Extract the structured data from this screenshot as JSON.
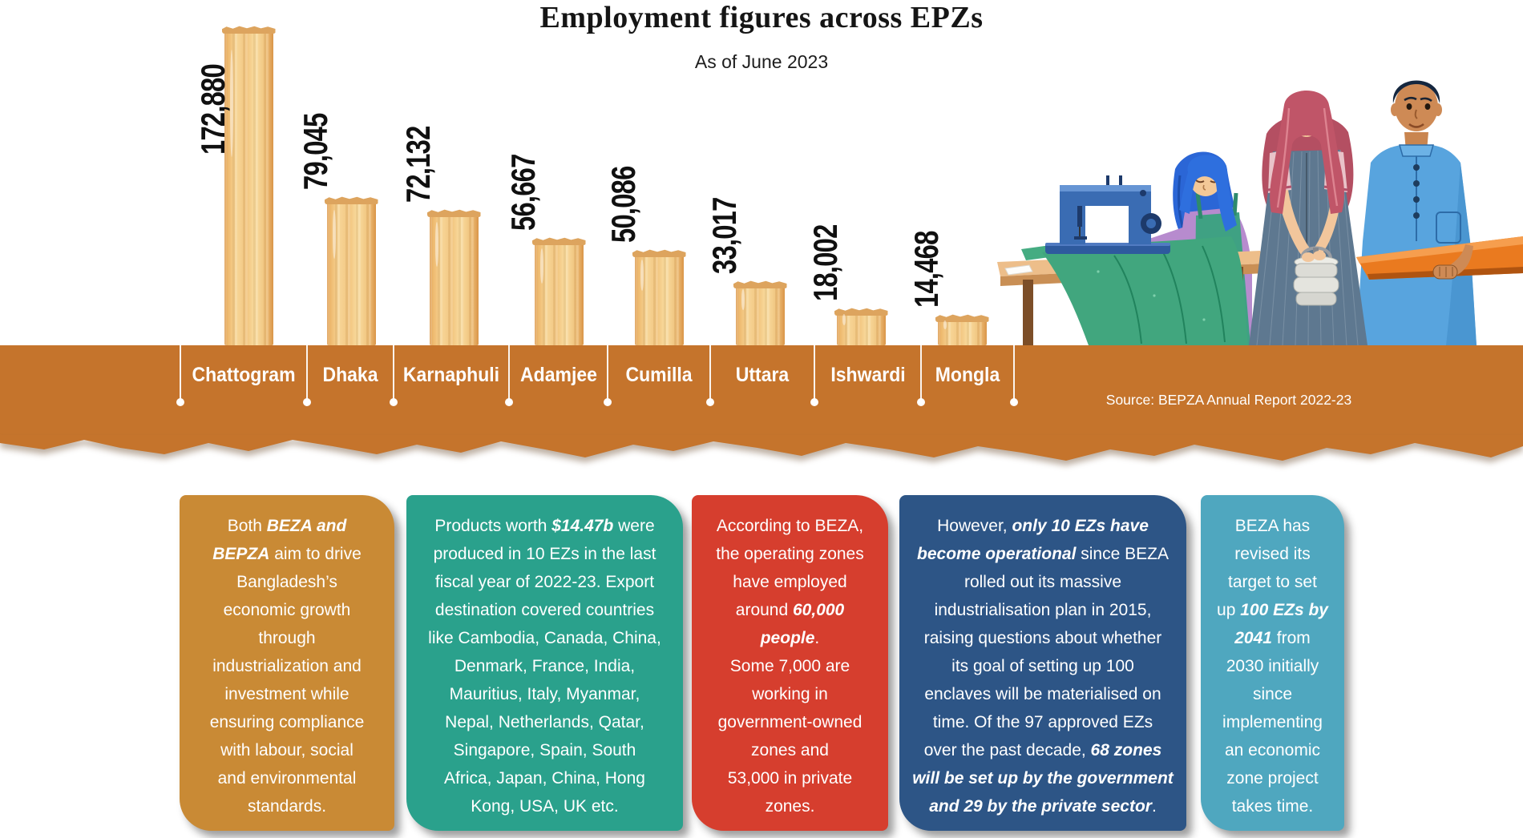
{
  "title": "Employment figures across EPZs",
  "subtitle": "As of June 2023",
  "source": "Source: BEPZA Annual Report 2022-23",
  "chart_data": {
    "type": "bar",
    "title": "Employment figures across EPZs",
    "subtitle": "As of June 2023",
    "categories": [
      "Chattogram",
      "Dhaka",
      "Karnaphuli",
      "Adamjee",
      "Cumilla",
      "Uttara",
      "Ishwardi",
      "Mongla"
    ],
    "values": [
      172880,
      79045,
      72132,
      56667,
      50086,
      33017,
      18002,
      14468
    ],
    "value_labels": [
      "172,880",
      "79,045",
      "72,132",
      "56,667",
      "50,086",
      "33,017",
      "18,002",
      "14,468"
    ],
    "ylim": [
      0,
      172880
    ],
    "grid": false,
    "legend": false,
    "bar_style": "wooden-plank",
    "source": "Source: BEPZA Annual Report 2022-23"
  },
  "colors": {
    "band": "#c5742c",
    "wood_light": "#f7d698",
    "wood_dark": "#dd9c51",
    "card_gold": "#c98a35",
    "card_teal": "#2aa18c",
    "card_red": "#d63e2e",
    "card_blue": "#2d5586",
    "card_lightblue": "#4fa7bf",
    "label_text": "#ffffff",
    "value_text": "#101010"
  },
  "illustration": {
    "name": "garment-workers-illustration",
    "description": "Seamstress in blue hijab sewing green fabric at a blue sewing machine, woman in rose hijab holding a steel tiffin carrier, man in blue kurta carrying folded orange fabric"
  },
  "cards": [
    {
      "name": "card-beza-bepza-goal",
      "color": "#c98a35",
      "lines": [
        [
          {
            "t": "Both "
          },
          {
            "t": "BEZA and",
            "b": true
          }
        ],
        [
          {
            "t": "BEPZA",
            "b": true
          },
          {
            "t": " aim to drive"
          }
        ],
        [
          {
            "t": "Bangladesh’s"
          }
        ],
        [
          {
            "t": "economic growth"
          }
        ],
        [
          {
            "t": "through"
          }
        ],
        [
          {
            "t": "industrialization and"
          }
        ],
        [
          {
            "t": "investment while"
          }
        ],
        [
          {
            "t": "ensuring compliance"
          }
        ],
        [
          {
            "t": "with labour, social"
          }
        ],
        [
          {
            "t": "and environmental"
          }
        ],
        [
          {
            "t": "standards."
          }
        ]
      ]
    },
    {
      "name": "card-export-products",
      "color": "#2aa18c",
      "lines": [
        [
          {
            "t": "Products worth "
          },
          {
            "t": "$14.47b",
            "b": true
          },
          {
            "t": " were"
          }
        ],
        [
          {
            "t": "produced in 10 EZs in the last"
          }
        ],
        [
          {
            "t": "fiscal year of 2022-23. Export"
          }
        ],
        [
          {
            "t": "destination covered countries"
          }
        ],
        [
          {
            "t": "like Cambodia, Canada, China,"
          }
        ],
        [
          {
            "t": "Denmark, France, India,"
          }
        ],
        [
          {
            "t": "Mauritius, Italy, Myanmar,"
          }
        ],
        [
          {
            "t": "Nepal, Netherlands, Qatar,"
          }
        ],
        [
          {
            "t": "Singapore, Spain, South"
          }
        ],
        [
          {
            "t": "Africa, Japan, China, Hong"
          }
        ],
        [
          {
            "t": "Kong, USA, UK etc."
          }
        ]
      ]
    },
    {
      "name": "card-beza-employment",
      "color": "#d63e2e",
      "lines": [
        [
          {
            "t": "According to BEZA,"
          }
        ],
        [
          {
            "t": "the operating zones"
          }
        ],
        [
          {
            "t": "have employed"
          }
        ],
        [
          {
            "t": "around "
          },
          {
            "t": "60,000",
            "b": true
          }
        ],
        [
          {
            "t": "people",
            "b": true
          },
          {
            "t": "."
          }
        ],
        [
          {
            "t": "Some 7,000 are"
          }
        ],
        [
          {
            "t": "working in"
          }
        ],
        [
          {
            "t": "government-owned"
          }
        ],
        [
          {
            "t": "zones and"
          }
        ],
        [
          {
            "t": "53,000 in private"
          }
        ],
        [
          {
            "t": "zones."
          }
        ]
      ]
    },
    {
      "name": "card-operational-ezs",
      "color": "#2d5586",
      "lines": [
        [
          {
            "t": "However, "
          },
          {
            "t": "only 10 EZs have",
            "b": true
          }
        ],
        [
          {
            "t": "become operational",
            "b": true
          },
          {
            "t": " since BEZA"
          }
        ],
        [
          {
            "t": "rolled out its massive"
          }
        ],
        [
          {
            "t": "industrialisation plan in 2015,"
          }
        ],
        [
          {
            "t": "raising questions about whether"
          }
        ],
        [
          {
            "t": "its goal of setting up 100"
          }
        ],
        [
          {
            "t": "enclaves will be materialised on"
          }
        ],
        [
          {
            "t": "time. Of the 97 approved EZs"
          }
        ],
        [
          {
            "t": "over the past decade, "
          },
          {
            "t": "68 zones",
            "b": true
          }
        ],
        [
          {
            "t": "will be set up by the government",
            "b": true
          }
        ],
        [
          {
            "t": "and 29 by the private sector",
            "b": true
          },
          {
            "t": "."
          }
        ]
      ]
    },
    {
      "name": "card-revised-target",
      "color": "#4fa7bf",
      "lines": [
        [
          {
            "t": "BEZA has"
          }
        ],
        [
          {
            "t": "revised its"
          }
        ],
        [
          {
            "t": "target to set"
          }
        ],
        [
          {
            "t": "up "
          },
          {
            "t": "100 EZs by",
            "b": true
          }
        ],
        [
          {
            "t": "2041",
            "b": true
          },
          {
            "t": " from"
          }
        ],
        [
          {
            "t": "2030 initially"
          }
        ],
        [
          {
            "t": "since"
          }
        ],
        [
          {
            "t": "implementing"
          }
        ],
        [
          {
            "t": "an economic"
          }
        ],
        [
          {
            "t": "zone project"
          }
        ],
        [
          {
            "t": "takes time."
          }
        ]
      ]
    }
  ]
}
